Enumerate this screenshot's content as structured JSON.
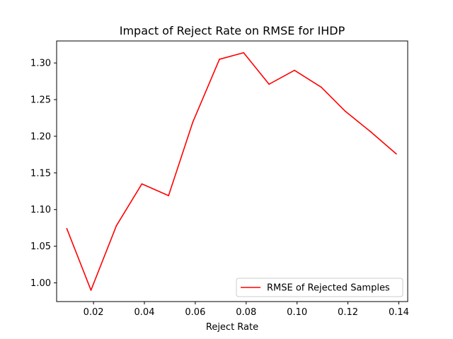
{
  "chart_data": {
    "type": "line",
    "title": "Impact of Reject Rate on RMSE for IHDP",
    "xlabel": "Reject Rate",
    "ylabel": "",
    "xlim": [
      0.0055,
      0.1435
    ],
    "ylim": [
      0.9745,
      1.33
    ],
    "x_ticks": [
      0.02,
      0.04,
      0.06,
      0.08,
      0.1,
      0.12,
      0.14
    ],
    "x_tick_labels": [
      "0.02",
      "0.04",
      "0.06",
      "0.08",
      "0.10",
      "0.12",
      "0.14"
    ],
    "y_ticks": [
      1.0,
      1.05,
      1.1,
      1.15,
      1.2,
      1.25,
      1.3
    ],
    "y_tick_labels": [
      "1.00",
      "1.05",
      "1.10",
      "1.15",
      "1.20",
      "1.25",
      "1.30"
    ],
    "grid": false,
    "legend_position": "bottom-right",
    "series": [
      {
        "name": "RMSE of Rejected Samples",
        "color": "#ff0000",
        "x": [
          0.0095,
          0.019,
          0.029,
          0.039,
          0.0495,
          0.059,
          0.0695,
          0.079,
          0.089,
          0.099,
          0.1095,
          0.119,
          0.129,
          0.139
        ],
        "y": [
          1.074,
          0.99,
          1.078,
          1.135,
          1.119,
          1.219,
          1.305,
          1.314,
          1.271,
          1.29,
          1.267,
          1.234,
          1.206,
          1.176
        ]
      }
    ]
  }
}
